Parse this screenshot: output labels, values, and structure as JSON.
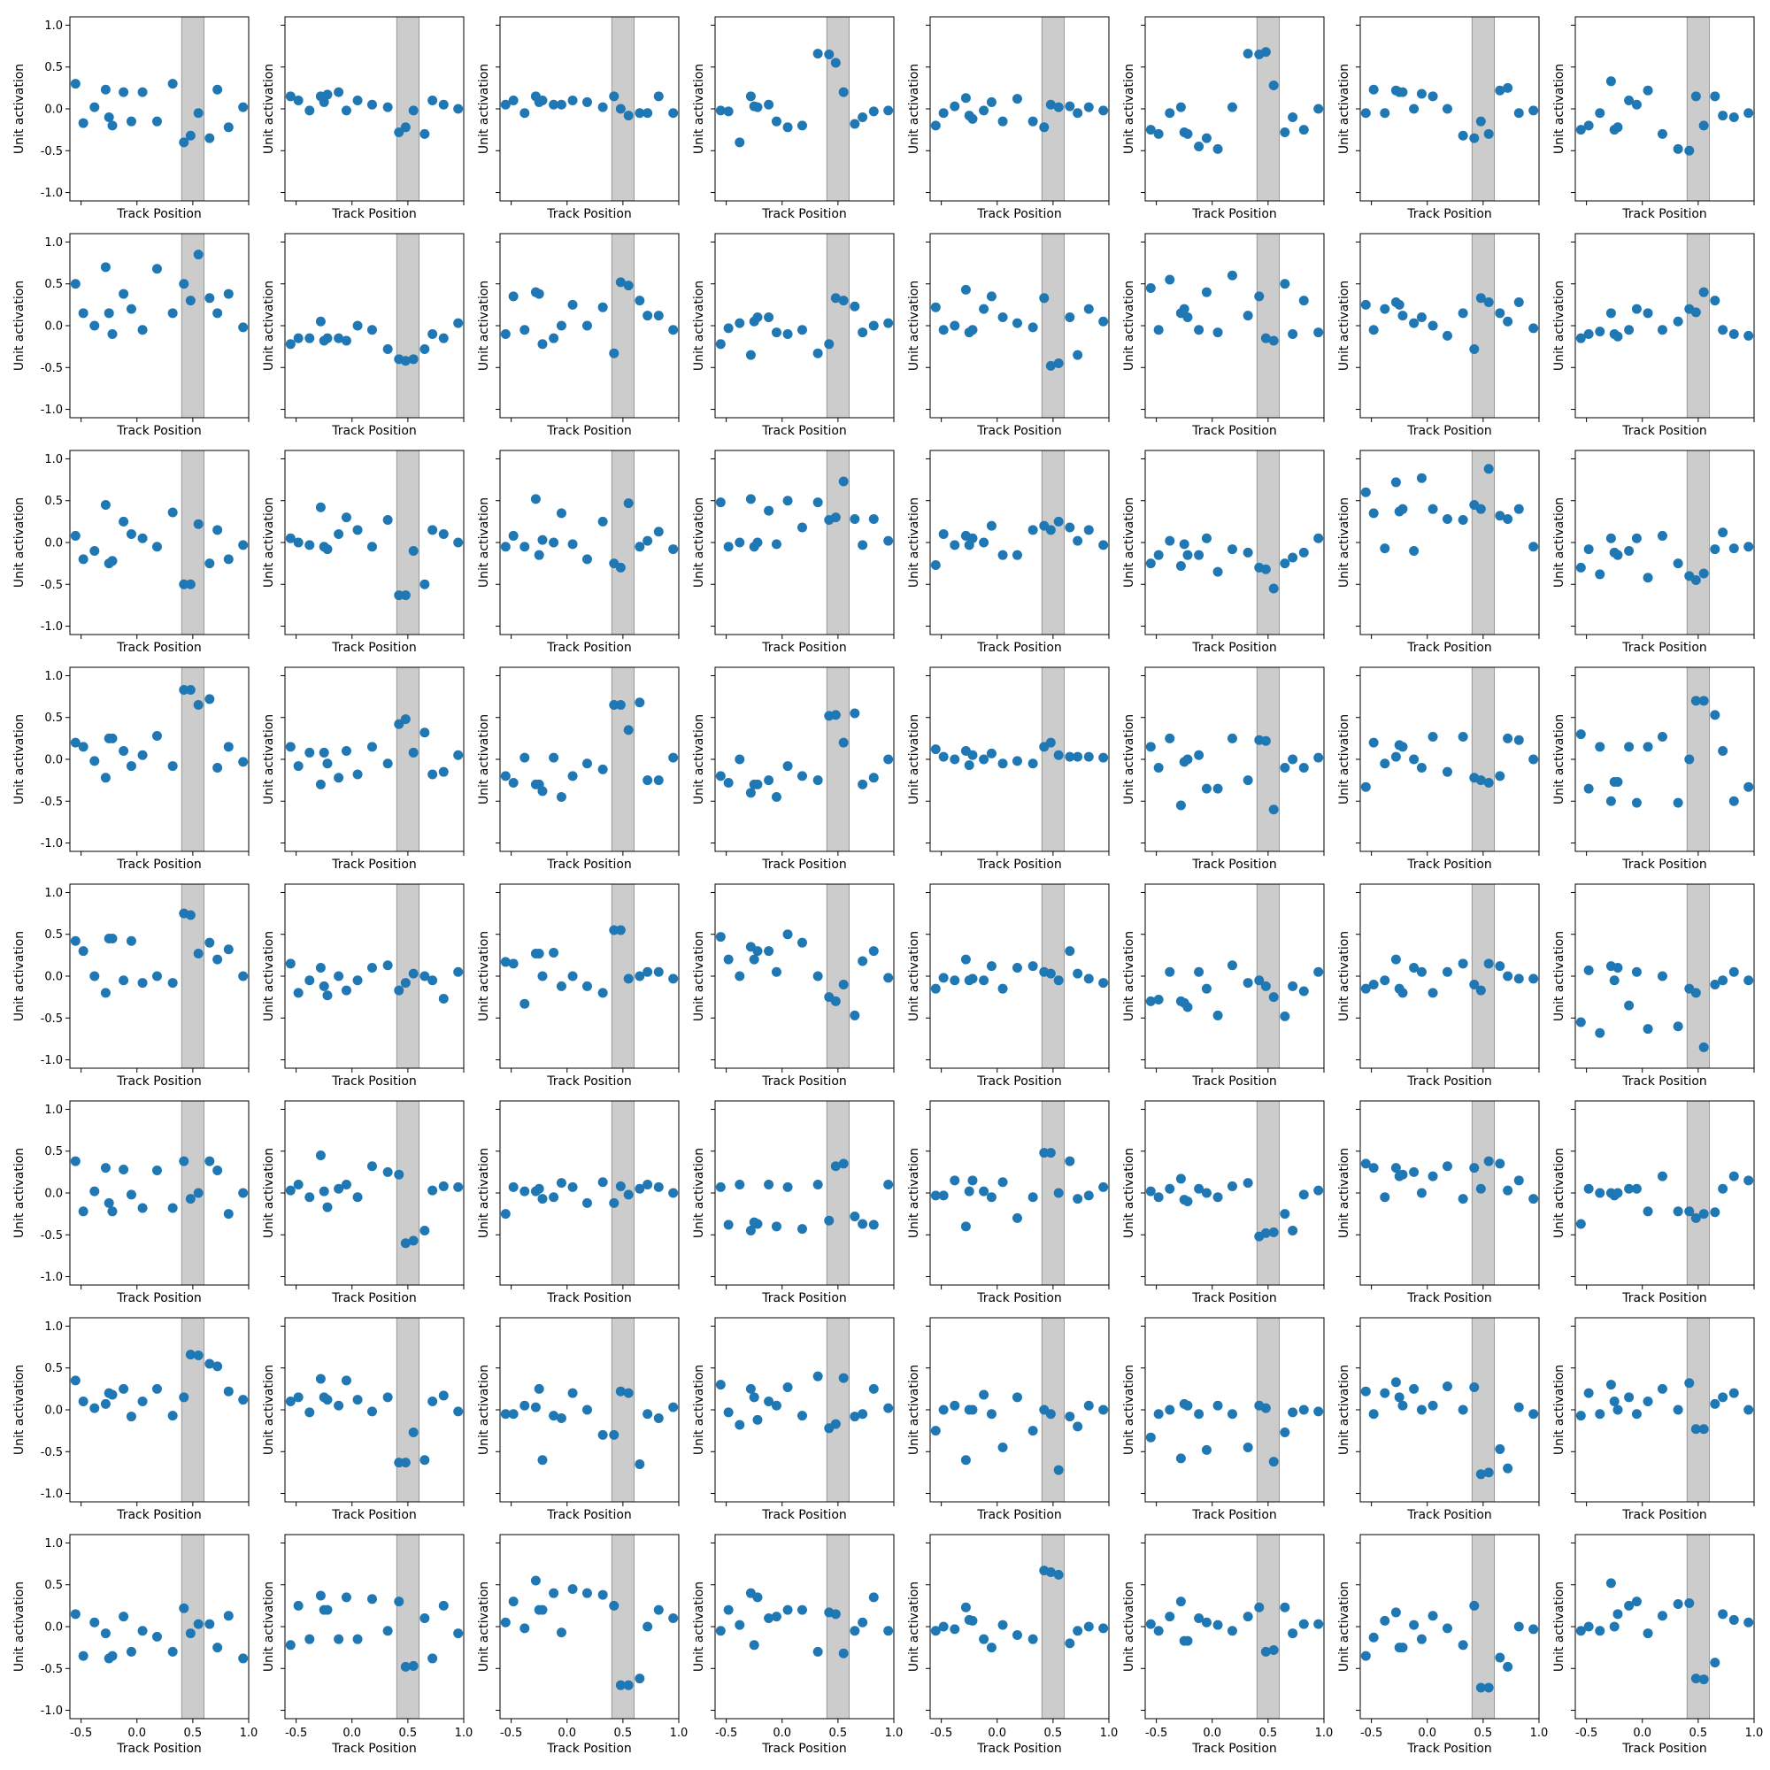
{
  "figure": {
    "xlabel": "Track Position",
    "ylabel": "Unit activation",
    "point_color": "#1f77b4",
    "band_color": "#cccccc"
  },
  "chart_data": {
    "type": "scatter",
    "layout": "8x8 small multiples, shared axes",
    "xlabel": "Track Position",
    "ylabel": "Unit activation",
    "xlim": [
      -0.6,
      1.0
    ],
    "ylim": [
      -1.1,
      1.1
    ],
    "xticks": [
      "-0.5",
      "0.0",
      "0.5",
      "1.0"
    ],
    "yticks": [
      "-1.0",
      "-0.5",
      "0.0",
      "0.5",
      "1.0"
    ],
    "shaded_band": [
      0.4,
      0.6
    ],
    "x": [
      -0.55,
      -0.48,
      -0.38,
      -0.28,
      -0.25,
      -0.22,
      -0.12,
      -0.05,
      0.05,
      0.18,
      0.32,
      0.42,
      0.48,
      0.55,
      0.65,
      0.72,
      0.82,
      0.95
    ],
    "panels": [
      [
        0.3,
        -0.17,
        0.02,
        0.23,
        -0.1,
        -0.2,
        0.2,
        -0.15,
        0.2,
        -0.15,
        0.3,
        -0.4,
        -0.32,
        -0.05,
        -0.35,
        0.23,
        -0.22,
        0.02
      ],
      [
        0.15,
        0.1,
        -0.02,
        0.15,
        0.08,
        0.17,
        0.2,
        -0.02,
        0.1,
        0.05,
        0.02,
        -0.28,
        -0.22,
        -0.02,
        -0.3,
        0.1,
        0.05,
        0.0
      ],
      [
        0.05,
        0.1,
        -0.05,
        0.15,
        0.08,
        0.1,
        0.05,
        0.05,
        0.1,
        0.08,
        0.02,
        0.15,
        0.0,
        -0.08,
        -0.05,
        -0.05,
        0.15,
        -0.05
      ],
      [
        -0.02,
        -0.03,
        -0.4,
        0.15,
        0.03,
        0.02,
        0.05,
        -0.15,
        -0.22,
        -0.2,
        0.66,
        0.65,
        0.55,
        0.2,
        -0.18,
        -0.1,
        -0.03,
        -0.02
      ],
      [
        -0.2,
        -0.05,
        0.03,
        0.13,
        -0.08,
        -0.12,
        -0.02,
        0.08,
        -0.15,
        0.12,
        -0.15,
        -0.22,
        0.05,
        0.02,
        0.03,
        -0.05,
        0.02,
        -0.02
      ],
      [
        -0.25,
        -0.3,
        -0.05,
        0.02,
        -0.28,
        -0.3,
        -0.45,
        -0.35,
        -0.48,
        0.02,
        0.66,
        0.65,
        0.68,
        0.28,
        -0.28,
        -0.1,
        -0.25,
        0.0
      ],
      [
        -0.05,
        0.23,
        -0.05,
        0.22,
        0.2,
        0.2,
        0.0,
        0.18,
        0.15,
        0.0,
        -0.32,
        -0.35,
        -0.15,
        -0.3,
        0.22,
        0.25,
        -0.05,
        -0.02
      ],
      [
        -0.25,
        -0.2,
        -0.05,
        0.33,
        -0.25,
        -0.22,
        0.1,
        0.05,
        0.22,
        -0.3,
        -0.48,
        -0.5,
        0.15,
        -0.2,
        0.15,
        -0.08,
        -0.1,
        -0.05
      ],
      [
        0.5,
        0.15,
        0.0,
        0.7,
        0.15,
        -0.1,
        0.38,
        0.2,
        -0.05,
        0.68,
        0.15,
        0.5,
        0.3,
        0.85,
        0.33,
        0.15,
        0.38,
        -0.02
      ],
      [
        -0.22,
        -0.15,
        -0.15,
        0.05,
        -0.18,
        -0.15,
        -0.15,
        -0.18,
        0.0,
        -0.05,
        -0.28,
        -0.4,
        -0.42,
        -0.4,
        -0.28,
        -0.1,
        -0.15,
        0.03
      ],
      [
        -0.1,
        0.35,
        -0.05,
        0.4,
        0.38,
        -0.22,
        -0.15,
        0.0,
        0.25,
        0.0,
        0.22,
        -0.33,
        0.52,
        0.48,
        0.3,
        0.12,
        0.12,
        -0.05
      ],
      [
        -0.22,
        -0.03,
        0.03,
        -0.35,
        0.05,
        0.1,
        0.1,
        -0.08,
        -0.1,
        -0.05,
        -0.33,
        -0.22,
        0.33,
        0.3,
        0.23,
        -0.08,
        0.0,
        0.03
      ],
      [
        0.22,
        -0.05,
        0.0,
        0.43,
        -0.08,
        -0.05,
        0.2,
        0.35,
        0.1,
        0.03,
        -0.02,
        0.33,
        -0.48,
        -0.45,
        0.1,
        -0.35,
        0.2,
        0.05
      ],
      [
        0.45,
        -0.05,
        0.55,
        0.15,
        0.2,
        0.1,
        -0.05,
        0.4,
        -0.08,
        0.6,
        0.12,
        0.35,
        -0.15,
        -0.18,
        0.5,
        -0.1,
        0.3,
        -0.08
      ],
      [
        0.25,
        -0.05,
        0.2,
        0.28,
        0.25,
        0.12,
        0.03,
        0.1,
        0.0,
        -0.12,
        0.15,
        -0.28,
        0.33,
        0.28,
        0.15,
        0.05,
        0.28,
        -0.03
      ],
      [
        -0.15,
        -0.1,
        -0.07,
        0.15,
        -0.1,
        -0.13,
        -0.05,
        0.2,
        0.15,
        -0.05,
        0.05,
        0.2,
        0.16,
        0.4,
        0.3,
        -0.05,
        -0.1,
        -0.12
      ],
      [
        0.08,
        -0.2,
        -0.1,
        0.45,
        -0.25,
        -0.22,
        0.25,
        0.1,
        0.05,
        -0.05,
        0.36,
        -0.5,
        -0.5,
        0.22,
        -0.25,
        0.15,
        -0.2,
        -0.03
      ],
      [
        0.05,
        0.0,
        -0.03,
        0.42,
        -0.05,
        -0.08,
        0.1,
        0.3,
        0.15,
        -0.05,
        0.27,
        -0.63,
        -0.63,
        -0.1,
        -0.5,
        0.15,
        0.1,
        0.0
      ],
      [
        -0.05,
        0.08,
        -0.05,
        0.52,
        -0.15,
        0.03,
        0.0,
        0.35,
        -0.02,
        -0.2,
        0.25,
        -0.25,
        -0.3,
        0.47,
        -0.05,
        0.02,
        0.13,
        -0.08
      ],
      [
        0.48,
        -0.05,
        0.0,
        0.52,
        -0.05,
        0.0,
        0.38,
        -0.02,
        0.5,
        0.18,
        0.48,
        0.27,
        0.3,
        0.73,
        0.28,
        -0.03,
        0.28,
        0.02
      ],
      [
        -0.27,
        0.1,
        -0.03,
        0.08,
        -0.03,
        0.05,
        0.0,
        0.2,
        -0.15,
        -0.15,
        0.15,
        0.2,
        0.15,
        0.25,
        0.18,
        0.02,
        0.15,
        -0.03
      ],
      [
        -0.25,
        -0.15,
        0.02,
        -0.28,
        -0.02,
        -0.15,
        -0.15,
        0.05,
        -0.35,
        -0.08,
        -0.12,
        -0.3,
        -0.32,
        -0.55,
        -0.25,
        -0.18,
        -0.12,
        0.05
      ],
      [
        0.6,
        0.35,
        -0.07,
        0.72,
        0.37,
        0.4,
        -0.1,
        0.77,
        0.4,
        0.28,
        0.27,
        0.45,
        0.4,
        0.88,
        0.32,
        0.28,
        0.4,
        -0.05
      ],
      [
        -0.3,
        -0.08,
        -0.38,
        0.05,
        -0.12,
        -0.15,
        -0.1,
        0.05,
        -0.42,
        0.08,
        -0.25,
        -0.4,
        -0.45,
        -0.37,
        -0.08,
        0.12,
        -0.07,
        -0.05
      ],
      [
        0.2,
        0.15,
        -0.02,
        -0.22,
        0.25,
        0.25,
        0.1,
        -0.08,
        0.05,
        0.28,
        -0.08,
        0.83,
        0.83,
        0.65,
        0.72,
        -0.1,
        0.15,
        -0.03
      ],
      [
        0.15,
        -0.08,
        0.08,
        -0.3,
        0.08,
        -0.05,
        -0.22,
        0.1,
        -0.18,
        0.15,
        -0.05,
        0.42,
        0.48,
        0.08,
        0.32,
        -0.18,
        -0.15,
        0.05
      ],
      [
        -0.2,
        -0.28,
        0.02,
        -0.3,
        -0.3,
        -0.38,
        0.02,
        -0.45,
        -0.2,
        -0.05,
        -0.12,
        0.65,
        0.65,
        0.35,
        0.68,
        -0.25,
        -0.25,
        0.02
      ],
      [
        -0.2,
        -0.28,
        0.0,
        -0.4,
        -0.3,
        -0.3,
        -0.25,
        -0.45,
        -0.08,
        -0.2,
        -0.25,
        0.52,
        0.53,
        0.2,
        0.55,
        -0.3,
        -0.22,
        0.0
      ],
      [
        0.12,
        0.03,
        0.0,
        0.1,
        -0.07,
        0.05,
        0.0,
        0.07,
        -0.05,
        -0.02,
        -0.05,
        0.15,
        0.2,
        0.05,
        0.03,
        0.03,
        0.03,
        0.02
      ],
      [
        0.15,
        -0.1,
        0.25,
        -0.55,
        -0.03,
        0.0,
        0.05,
        -0.35,
        -0.35,
        0.25,
        -0.25,
        0.23,
        0.22,
        -0.6,
        -0.1,
        0.0,
        -0.1,
        0.02
      ],
      [
        -0.33,
        0.2,
        -0.05,
        0.03,
        0.17,
        0.15,
        0.0,
        -0.1,
        0.27,
        -0.15,
        0.27,
        -0.22,
        -0.25,
        -0.28,
        -0.2,
        0.25,
        0.23,
        0.0
      ],
      [
        0.3,
        -0.35,
        0.15,
        -0.5,
        -0.27,
        -0.27,
        0.15,
        -0.52,
        0.15,
        0.27,
        -0.52,
        0.0,
        0.7,
        0.7,
        0.53,
        0.1,
        -0.5,
        -0.33
      ],
      [
        0.42,
        0.3,
        0.0,
        -0.2,
        0.45,
        0.45,
        -0.05,
        0.42,
        -0.08,
        0.0,
        -0.08,
        0.75,
        0.73,
        0.27,
        0.4,
        0.2,
        0.32,
        0.0
      ],
      [
        0.15,
        -0.2,
        -0.05,
        0.1,
        -0.12,
        -0.23,
        0.0,
        -0.17,
        -0.05,
        0.1,
        0.13,
        -0.17,
        -0.08,
        0.03,
        0.0,
        -0.05,
        -0.27,
        0.05
      ],
      [
        0.17,
        0.15,
        -0.33,
        0.27,
        0.27,
        0.0,
        0.28,
        -0.12,
        0.0,
        -0.12,
        -0.2,
        0.55,
        0.55,
        -0.03,
        0.0,
        0.05,
        0.05,
        -0.03
      ],
      [
        0.47,
        0.2,
        0.0,
        0.35,
        0.2,
        0.3,
        0.3,
        0.05,
        0.5,
        0.4,
        0.0,
        -0.25,
        -0.3,
        -0.1,
        -0.47,
        0.18,
        0.3,
        -0.02
      ],
      [
        -0.15,
        -0.02,
        -0.05,
        0.2,
        -0.05,
        -0.03,
        -0.05,
        0.12,
        -0.15,
        0.1,
        0.12,
        0.05,
        0.03,
        -0.05,
        0.3,
        0.03,
        -0.03,
        -0.08
      ],
      [
        -0.3,
        -0.28,
        0.05,
        -0.3,
        -0.32,
        -0.37,
        0.05,
        -0.15,
        -0.47,
        0.13,
        -0.08,
        -0.05,
        -0.12,
        -0.25,
        -0.48,
        -0.12,
        -0.18,
        0.05
      ],
      [
        -0.15,
        -0.1,
        -0.05,
        0.2,
        -0.15,
        -0.2,
        0.1,
        0.05,
        -0.2,
        0.05,
        0.15,
        -0.1,
        -0.17,
        0.15,
        0.12,
        0.0,
        -0.03,
        -0.03
      ],
      [
        -0.55,
        0.07,
        -0.68,
        0.12,
        -0.05,
        0.1,
        -0.35,
        0.05,
        -0.63,
        0.0,
        -0.6,
        -0.15,
        -0.2,
        -0.85,
        -0.1,
        -0.05,
        0.05,
        -0.05
      ],
      [
        0.38,
        -0.22,
        0.02,
        0.3,
        -0.12,
        -0.22,
        0.28,
        -0.02,
        -0.18,
        0.27,
        -0.18,
        0.38,
        -0.07,
        0.0,
        0.38,
        0.27,
        -0.25,
        0.0
      ],
      [
        0.03,
        0.1,
        -0.05,
        0.45,
        0.02,
        -0.17,
        0.05,
        0.1,
        -0.05,
        0.32,
        0.25,
        0.22,
        -0.6,
        -0.57,
        -0.45,
        0.03,
        0.08,
        0.07
      ],
      [
        -0.25,
        0.07,
        0.02,
        0.02,
        0.05,
        -0.07,
        -0.05,
        0.12,
        0.07,
        -0.12,
        0.13,
        -0.12,
        0.08,
        -0.02,
        0.05,
        0.1,
        0.07,
        0.0
      ],
      [
        0.07,
        -0.38,
        0.1,
        -0.45,
        -0.35,
        -0.37,
        0.1,
        -0.4,
        0.07,
        -0.43,
        0.1,
        -0.33,
        0.32,
        0.35,
        -0.28,
        -0.37,
        -0.38,
        0.1
      ],
      [
        -0.03,
        -0.03,
        0.15,
        -0.4,
        0.02,
        0.15,
        0.02,
        -0.05,
        0.13,
        -0.3,
        -0.05,
        0.48,
        0.48,
        0.0,
        0.38,
        -0.07,
        -0.03,
        0.07
      ],
      [
        0.02,
        -0.05,
        0.05,
        0.17,
        -0.08,
        -0.1,
        0.05,
        0.0,
        -0.05,
        0.08,
        0.12,
        -0.52,
        -0.48,
        -0.47,
        -0.25,
        -0.45,
        -0.02,
        0.03
      ],
      [
        0.35,
        0.3,
        -0.05,
        0.3,
        0.2,
        0.22,
        0.25,
        0.0,
        0.2,
        0.32,
        -0.07,
        0.3,
        0.05,
        0.38,
        0.35,
        0.03,
        0.15,
        -0.07
      ],
      [
        -0.37,
        0.05,
        0.0,
        0.0,
        -0.03,
        0.0,
        0.05,
        0.05,
        -0.22,
        0.2,
        -0.22,
        -0.22,
        -0.3,
        -0.25,
        -0.23,
        0.05,
        0.2,
        0.15
      ],
      [
        0.35,
        0.1,
        0.02,
        0.07,
        0.2,
        0.18,
        0.25,
        -0.08,
        0.1,
        0.25,
        -0.07,
        0.15,
        0.66,
        0.65,
        0.55,
        0.52,
        0.22,
        0.12
      ],
      [
        0.1,
        0.15,
        -0.03,
        0.37,
        0.15,
        0.12,
        0.05,
        0.35,
        0.12,
        -0.02,
        0.15,
        -0.63,
        -0.63,
        -0.27,
        -0.6,
        0.1,
        0.17,
        -0.02
      ],
      [
        -0.05,
        -0.05,
        0.05,
        0.03,
        0.25,
        -0.6,
        -0.07,
        -0.1,
        0.2,
        0.0,
        -0.3,
        -0.3,
        0.22,
        0.2,
        -0.65,
        -0.05,
        -0.1,
        0.03
      ],
      [
        0.3,
        -0.03,
        -0.18,
        0.25,
        0.15,
        -0.12,
        0.1,
        0.05,
        0.27,
        -0.07,
        0.4,
        -0.22,
        -0.17,
        0.38,
        -0.08,
        -0.05,
        0.25,
        0.02
      ],
      [
        -0.25,
        0.0,
        0.05,
        -0.6,
        0.0,
        0.0,
        0.18,
        -0.05,
        -0.45,
        0.15,
        -0.25,
        0.0,
        -0.05,
        -0.72,
        -0.08,
        -0.2,
        0.05,
        0.0
      ],
      [
        -0.33,
        -0.05,
        0.0,
        -0.58,
        0.07,
        0.05,
        -0.05,
        -0.48,
        0.05,
        -0.05,
        -0.45,
        0.05,
        0.02,
        -0.62,
        -0.27,
        -0.03,
        0.0,
        -0.02
      ],
      [
        0.22,
        -0.05,
        0.2,
        0.33,
        0.15,
        0.05,
        0.25,
        0.0,
        0.05,
        0.28,
        0.0,
        0.27,
        -0.77,
        -0.75,
        -0.47,
        -0.7,
        0.03,
        -0.05
      ],
      [
        -0.07,
        0.2,
        -0.05,
        0.3,
        0.1,
        0.0,
        0.15,
        -0.05,
        0.1,
        0.25,
        0.0,
        0.32,
        -0.23,
        -0.23,
        0.07,
        0.15,
        0.2,
        0.0
      ],
      [
        0.15,
        -0.35,
        0.05,
        -0.08,
        -0.38,
        -0.35,
        0.12,
        -0.3,
        -0.05,
        -0.12,
        -0.3,
        0.22,
        -0.08,
        0.03,
        0.03,
        -0.25,
        0.13,
        -0.38
      ],
      [
        -0.22,
        0.25,
        -0.15,
        0.37,
        0.2,
        0.2,
        -0.15,
        0.35,
        -0.15,
        0.33,
        -0.05,
        0.3,
        -0.48,
        -0.47,
        0.1,
        -0.38,
        0.25,
        -0.08
      ],
      [
        0.05,
        0.3,
        -0.02,
        0.55,
        0.2,
        0.2,
        0.4,
        -0.07,
        0.45,
        0.4,
        0.38,
        0.25,
        -0.7,
        -0.7,
        -0.62,
        0.0,
        0.2,
        0.1
      ],
      [
        -0.05,
        0.2,
        0.02,
        0.4,
        -0.22,
        0.35,
        0.1,
        0.12,
        0.2,
        0.2,
        -0.3,
        0.17,
        0.15,
        -0.32,
        -0.05,
        0.05,
        0.35,
        -0.05
      ],
      [
        -0.05,
        0.0,
        -0.03,
        0.23,
        0.08,
        0.07,
        -0.15,
        -0.25,
        0.02,
        -0.1,
        -0.15,
        0.67,
        0.65,
        0.62,
        -0.2,
        -0.05,
        0.0,
        -0.02
      ],
      [
        0.03,
        -0.05,
        0.12,
        0.3,
        -0.17,
        -0.17,
        0.1,
        0.05,
        0.02,
        -0.05,
        0.12,
        0.23,
        -0.3,
        -0.28,
        0.23,
        -0.08,
        0.03,
        0.03
      ],
      [
        -0.35,
        -0.13,
        0.07,
        0.17,
        -0.25,
        -0.25,
        0.02,
        -0.15,
        0.13,
        -0.02,
        -0.22,
        0.25,
        -0.73,
        -0.73,
        -0.37,
        -0.48,
        0.0,
        -0.03
      ],
      [
        -0.05,
        0.0,
        -0.05,
        0.52,
        0.0,
        0.15,
        0.25,
        0.3,
        -0.08,
        0.13,
        0.27,
        0.28,
        -0.62,
        -0.63,
        -0.43,
        0.15,
        0.08,
        0.05
      ]
    ]
  }
}
